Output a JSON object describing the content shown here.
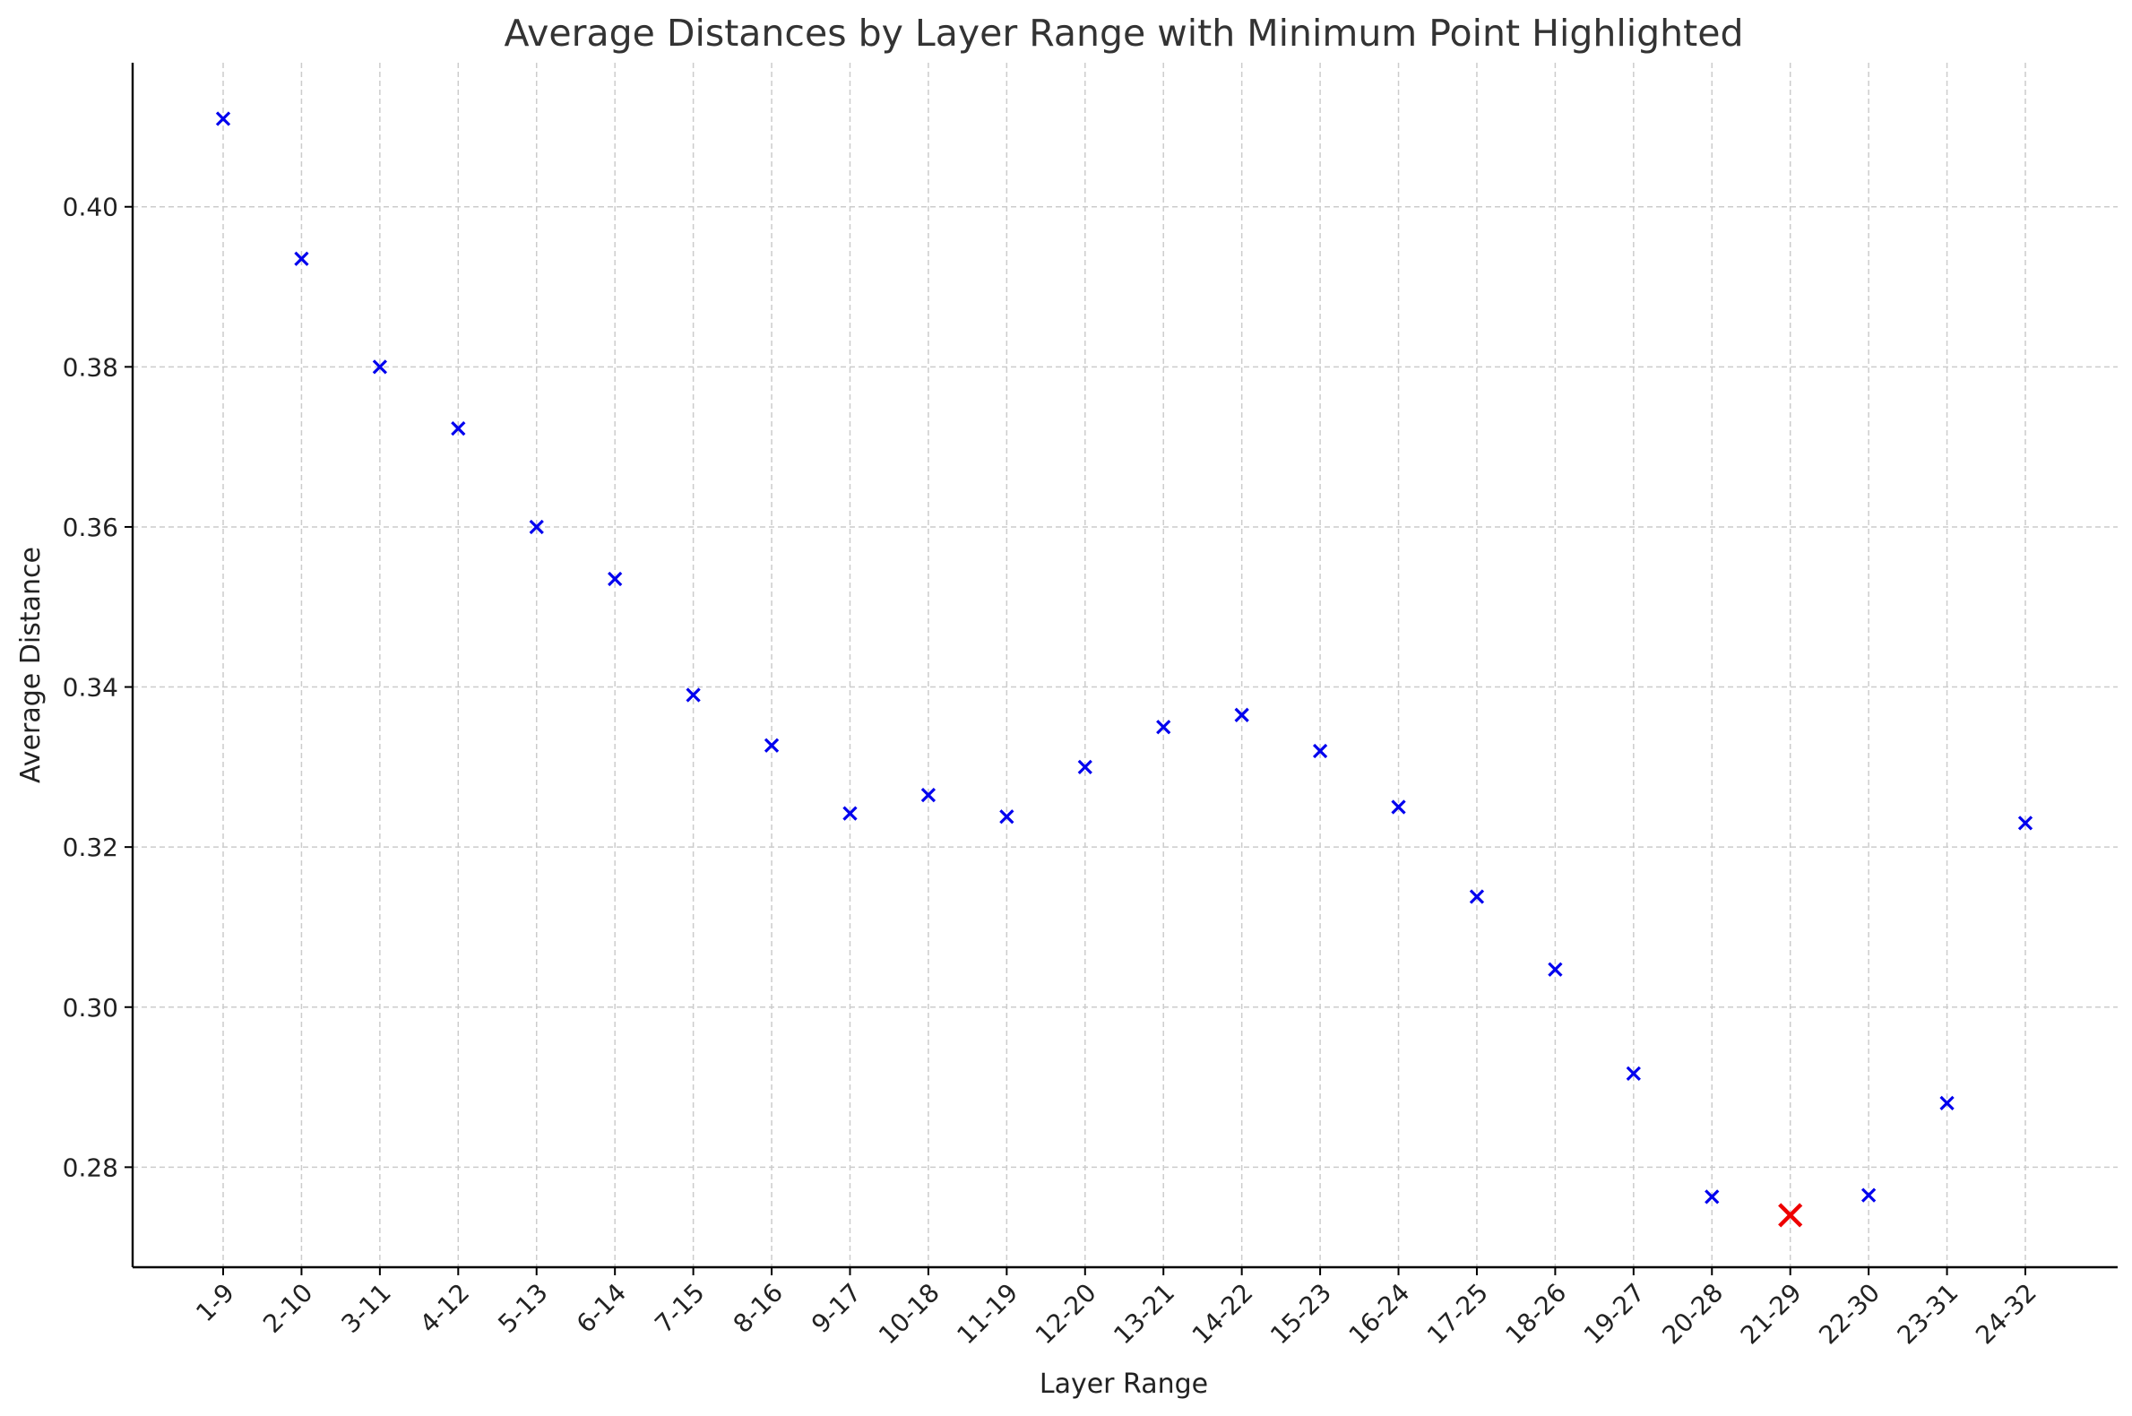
{
  "chart_data": {
    "type": "scatter",
    "title": "Average Distances by Layer Range with Minimum Point Highlighted",
    "xlabel": "Layer Range",
    "ylabel": "Average Distance",
    "categories": [
      "1-9",
      "2-10",
      "3-11",
      "4-12",
      "5-13",
      "6-14",
      "7-15",
      "8-16",
      "9-17",
      "10-18",
      "11-19",
      "12-20",
      "13-21",
      "14-22",
      "15-23",
      "16-24",
      "17-25",
      "18-26",
      "19-27",
      "20-28",
      "21-29",
      "22-30",
      "23-31",
      "24-32"
    ],
    "values": [
      0.411,
      0.3935,
      0.38,
      0.3723,
      0.36,
      0.3535,
      0.339,
      0.3327,
      0.3242,
      0.3265,
      0.3238,
      0.33,
      0.335,
      0.3365,
      0.332,
      0.325,
      0.3138,
      0.3047,
      0.2917,
      0.2763,
      0.274,
      0.2765,
      0.288,
      0.323
    ],
    "highlight_index": 20,
    "yticks": [
      0.28,
      0.3,
      0.32,
      0.34,
      0.36,
      0.38,
      0.4
    ],
    "ylim": [
      0.2675,
      0.418
    ],
    "grid": true,
    "marker": "x",
    "colors": {
      "points": "#0000ee",
      "highlight": "#ee0000"
    }
  }
}
